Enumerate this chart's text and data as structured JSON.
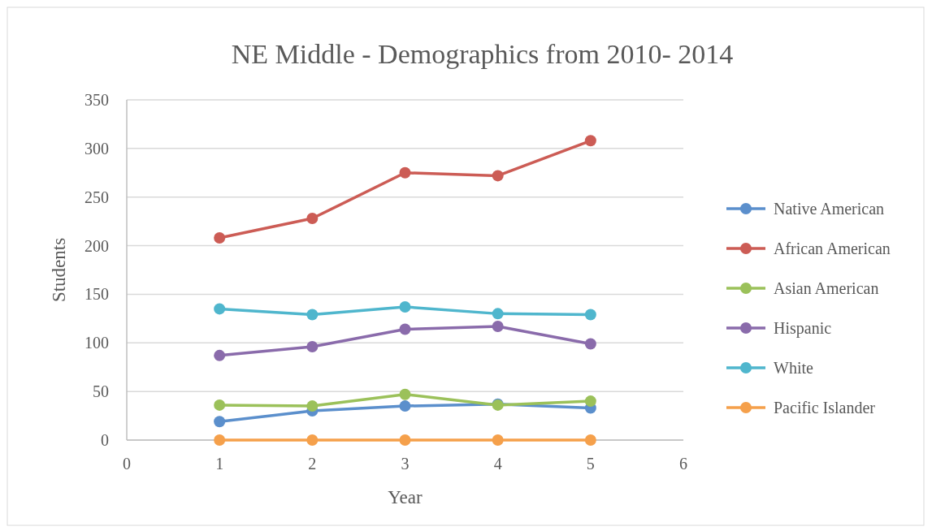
{
  "chart_data": {
    "type": "line",
    "title": "NE Middle - Demographics from 2010- 2014",
    "xlabel": "Year",
    "ylabel": "Students",
    "x": [
      1,
      2,
      3,
      4,
      5
    ],
    "xlim": [
      0,
      6
    ],
    "xticks": [
      0,
      1,
      2,
      3,
      4,
      5,
      6
    ],
    "ylim": [
      0,
      350
    ],
    "yticks": [
      0,
      50,
      100,
      150,
      200,
      250,
      300,
      350
    ],
    "grid": "y",
    "legend": "right",
    "marker": "circle",
    "line_style": "solid",
    "series": [
      {
        "name": "Native American",
        "color": "#5b8fcc",
        "values": [
          19,
          30,
          35,
          37,
          33
        ]
      },
      {
        "name": "African American",
        "color": "#cc5c55",
        "values": [
          208,
          228,
          275,
          272,
          308
        ]
      },
      {
        "name": "Asian American",
        "color": "#9bc15a",
        "values": [
          36,
          35,
          47,
          36,
          40
        ]
      },
      {
        "name": "Hispanic",
        "color": "#8a6bab",
        "values": [
          87,
          96,
          114,
          117,
          99
        ]
      },
      {
        "name": "White",
        "color": "#4fb6cd",
        "values": [
          135,
          129,
          137,
          130,
          129
        ]
      },
      {
        "name": "Pacific Islander",
        "color": "#f5a04b",
        "values": [
          0,
          0,
          0,
          0,
          0
        ]
      }
    ]
  }
}
